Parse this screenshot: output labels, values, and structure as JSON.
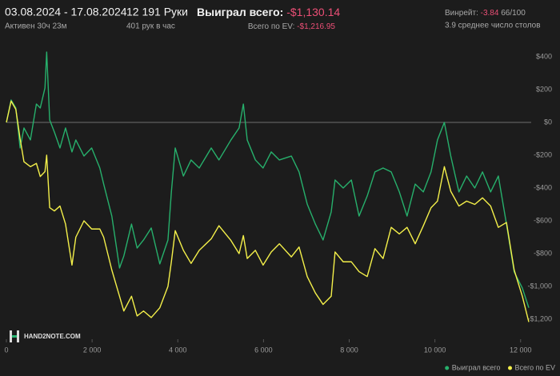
{
  "header": {
    "date_range": "03.08.2024 - 17.08.2024",
    "active": "Активен 30ч 23м",
    "hands": "12 191 Руки",
    "hands_per_hour": "401 рук в час",
    "won_label": "Выиграл всего:",
    "won_value": "-$1,130.14",
    "ev_label": "Всего по EV:",
    "ev_value": "-$1,216.95",
    "winrate_label": "Винрейт:",
    "winrate_value": "-3.84",
    "winrate_detail": "66/100",
    "avg_tables": "3.9 среднее число столов"
  },
  "logo": "HAND2NOTE.COM",
  "chart_data": {
    "type": "line",
    "x": [
      0,
      110,
      220,
      320,
      410,
      560,
      700,
      790,
      900,
      940,
      1010,
      1120,
      1250,
      1380,
      1530,
      1620,
      1810,
      1990,
      2180,
      2270,
      2460,
      2640,
      2740,
      2920,
      3050,
      3200,
      3380,
      3580,
      3770,
      3850,
      3940,
      4130,
      4310,
      4500,
      4780,
      4960,
      5240,
      5430,
      5530,
      5620,
      5810,
      5990,
      6180,
      6370,
      6650,
      6830,
      7020,
      7210,
      7390,
      7580,
      7670,
      7860,
      8050,
      8230,
      8420,
      8600,
      8790,
      8980,
      9170,
      9350,
      9540,
      9730,
      9910,
      10060,
      10220,
      10370,
      10560,
      10740,
      10930,
      11110,
      11300,
      11480,
      11670,
      11850,
      12040,
      12191
    ],
    "series": [
      {
        "name": "Выиграл всего",
        "color": "#27b06c",
        "values": [
          0,
          137,
          88,
          -156,
          -34,
          -107,
          112,
          88,
          210,
          429,
          15,
          -59,
          -156,
          -34,
          -180,
          -107,
          -205,
          -156,
          -278,
          -376,
          -571,
          -888,
          -815,
          -620,
          -766,
          -717,
          -644,
          -863,
          -717,
          -424,
          -156,
          -327,
          -229,
          -278,
          -156,
          -229,
          -107,
          -34,
          112,
          -107,
          -229,
          -278,
          -180,
          -229,
          -205,
          -302,
          -498,
          -620,
          -717,
          -546,
          -351,
          -400,
          -351,
          -571,
          -449,
          -302,
          -278,
          -302,
          -424,
          -571,
          -376,
          -424,
          -302,
          -107,
          0,
          -205,
          -424,
          -327,
          -400,
          -302,
          -424,
          -327,
          -620,
          -912,
          -1010,
          -1130.14
        ]
      },
      {
        "name": "Всего по EV",
        "color": "#f4f04a",
        "values": [
          0,
          130,
          80,
          -100,
          -240,
          -270,
          -250,
          -330,
          -300,
          -200,
          -520,
          -540,
          -510,
          -620,
          -870,
          -700,
          -600,
          -650,
          -650,
          -700,
          -900,
          -1060,
          -1150,
          -1060,
          -1180,
          -1150,
          -1190,
          -1130,
          -1000,
          -850,
          -660,
          -780,
          -860,
          -780,
          -710,
          -630,
          -720,
          -800,
          -690,
          -830,
          -780,
          -870,
          -790,
          -740,
          -820,
          -760,
          -940,
          -1040,
          -1110,
          -1060,
          -790,
          -850,
          -850,
          -910,
          -940,
          -770,
          -830,
          -640,
          -680,
          -640,
          -740,
          -630,
          -520,
          -480,
          -270,
          -420,
          -510,
          -480,
          -500,
          -460,
          -510,
          -640,
          -610,
          -900,
          -1060,
          -1216.95
        ]
      }
    ],
    "xlim": [
      0,
      12191
    ],
    "xticks": [
      0,
      {
        "value": 2000,
        "label": "2 000"
      },
      {
        "value": 4000,
        "label": "4 000"
      },
      {
        "value": 6000,
        "label": "6 000"
      },
      {
        "value": 8000,
        "label": "8 000"
      },
      {
        "value": 10000,
        "label": "10 000"
      },
      {
        "value": 12000,
        "label": "12 000"
      }
    ],
    "ylim": [
      -1300,
      500
    ],
    "yticks": [
      {
        "value": 400,
        "label": "$400"
      },
      {
        "value": 200,
        "label": "$200"
      },
      {
        "value": 0,
        "label": "$0"
      },
      {
        "value": -200,
        "label": "-$200"
      },
      {
        "value": -400,
        "label": "-$400"
      },
      {
        "value": -600,
        "label": "-$600"
      },
      {
        "value": -800,
        "label": "-$800"
      },
      {
        "value": -1000,
        "label": "-$1,000"
      },
      {
        "value": -1200,
        "label": "-$1,200"
      }
    ],
    "zero_line": true,
    "legend": "bottom-right"
  }
}
